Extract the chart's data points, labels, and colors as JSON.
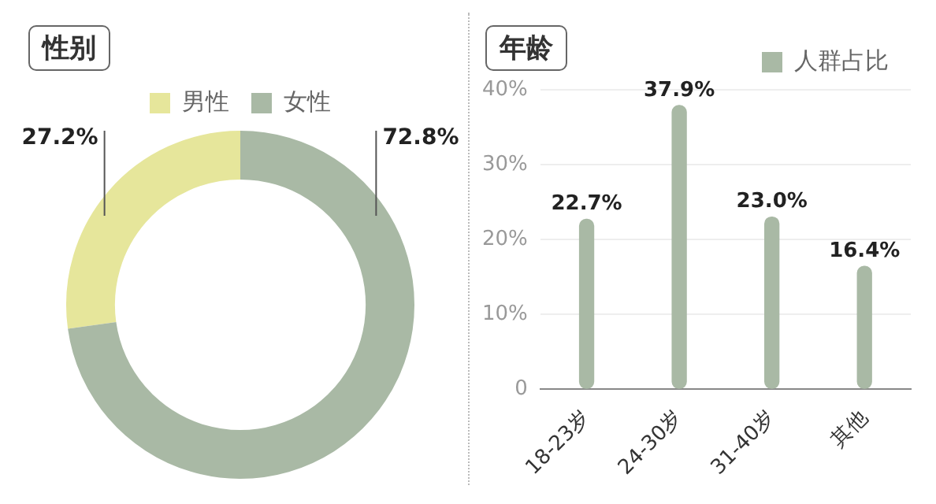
{
  "chart_data": [
    {
      "type": "donut",
      "title": "性别",
      "categories": [
        "男性",
        "女性"
      ],
      "values": [
        27.2,
        72.8
      ],
      "colors": [
        "#e6e69b",
        "#a9b9a5"
      ],
      "value_labels": [
        "27.2%",
        "72.8%"
      ],
      "legend": "top"
    },
    {
      "type": "bar",
      "title": "年龄",
      "categories": [
        "18-23岁",
        "24-30岁",
        "31-40岁",
        "其他"
      ],
      "series": [
        {
          "name": "人群占比",
          "color": "#a9b9a5",
          "values": [
            22.7,
            37.9,
            23.0,
            16.4
          ],
          "value_labels": [
            "22.7%",
            "37.9%",
            "23.0%",
            "16.4%"
          ]
        }
      ],
      "ylim": [
        0,
        40
      ],
      "yticks": [
        {
          "value": 0,
          "label": "0"
        },
        {
          "value": 10,
          "label": "10%"
        },
        {
          "value": 20,
          "label": "20%"
        },
        {
          "value": 30,
          "label": "30%"
        },
        {
          "value": 40,
          "label": "40%"
        }
      ],
      "grid": "y",
      "legend": "top right"
    }
  ]
}
